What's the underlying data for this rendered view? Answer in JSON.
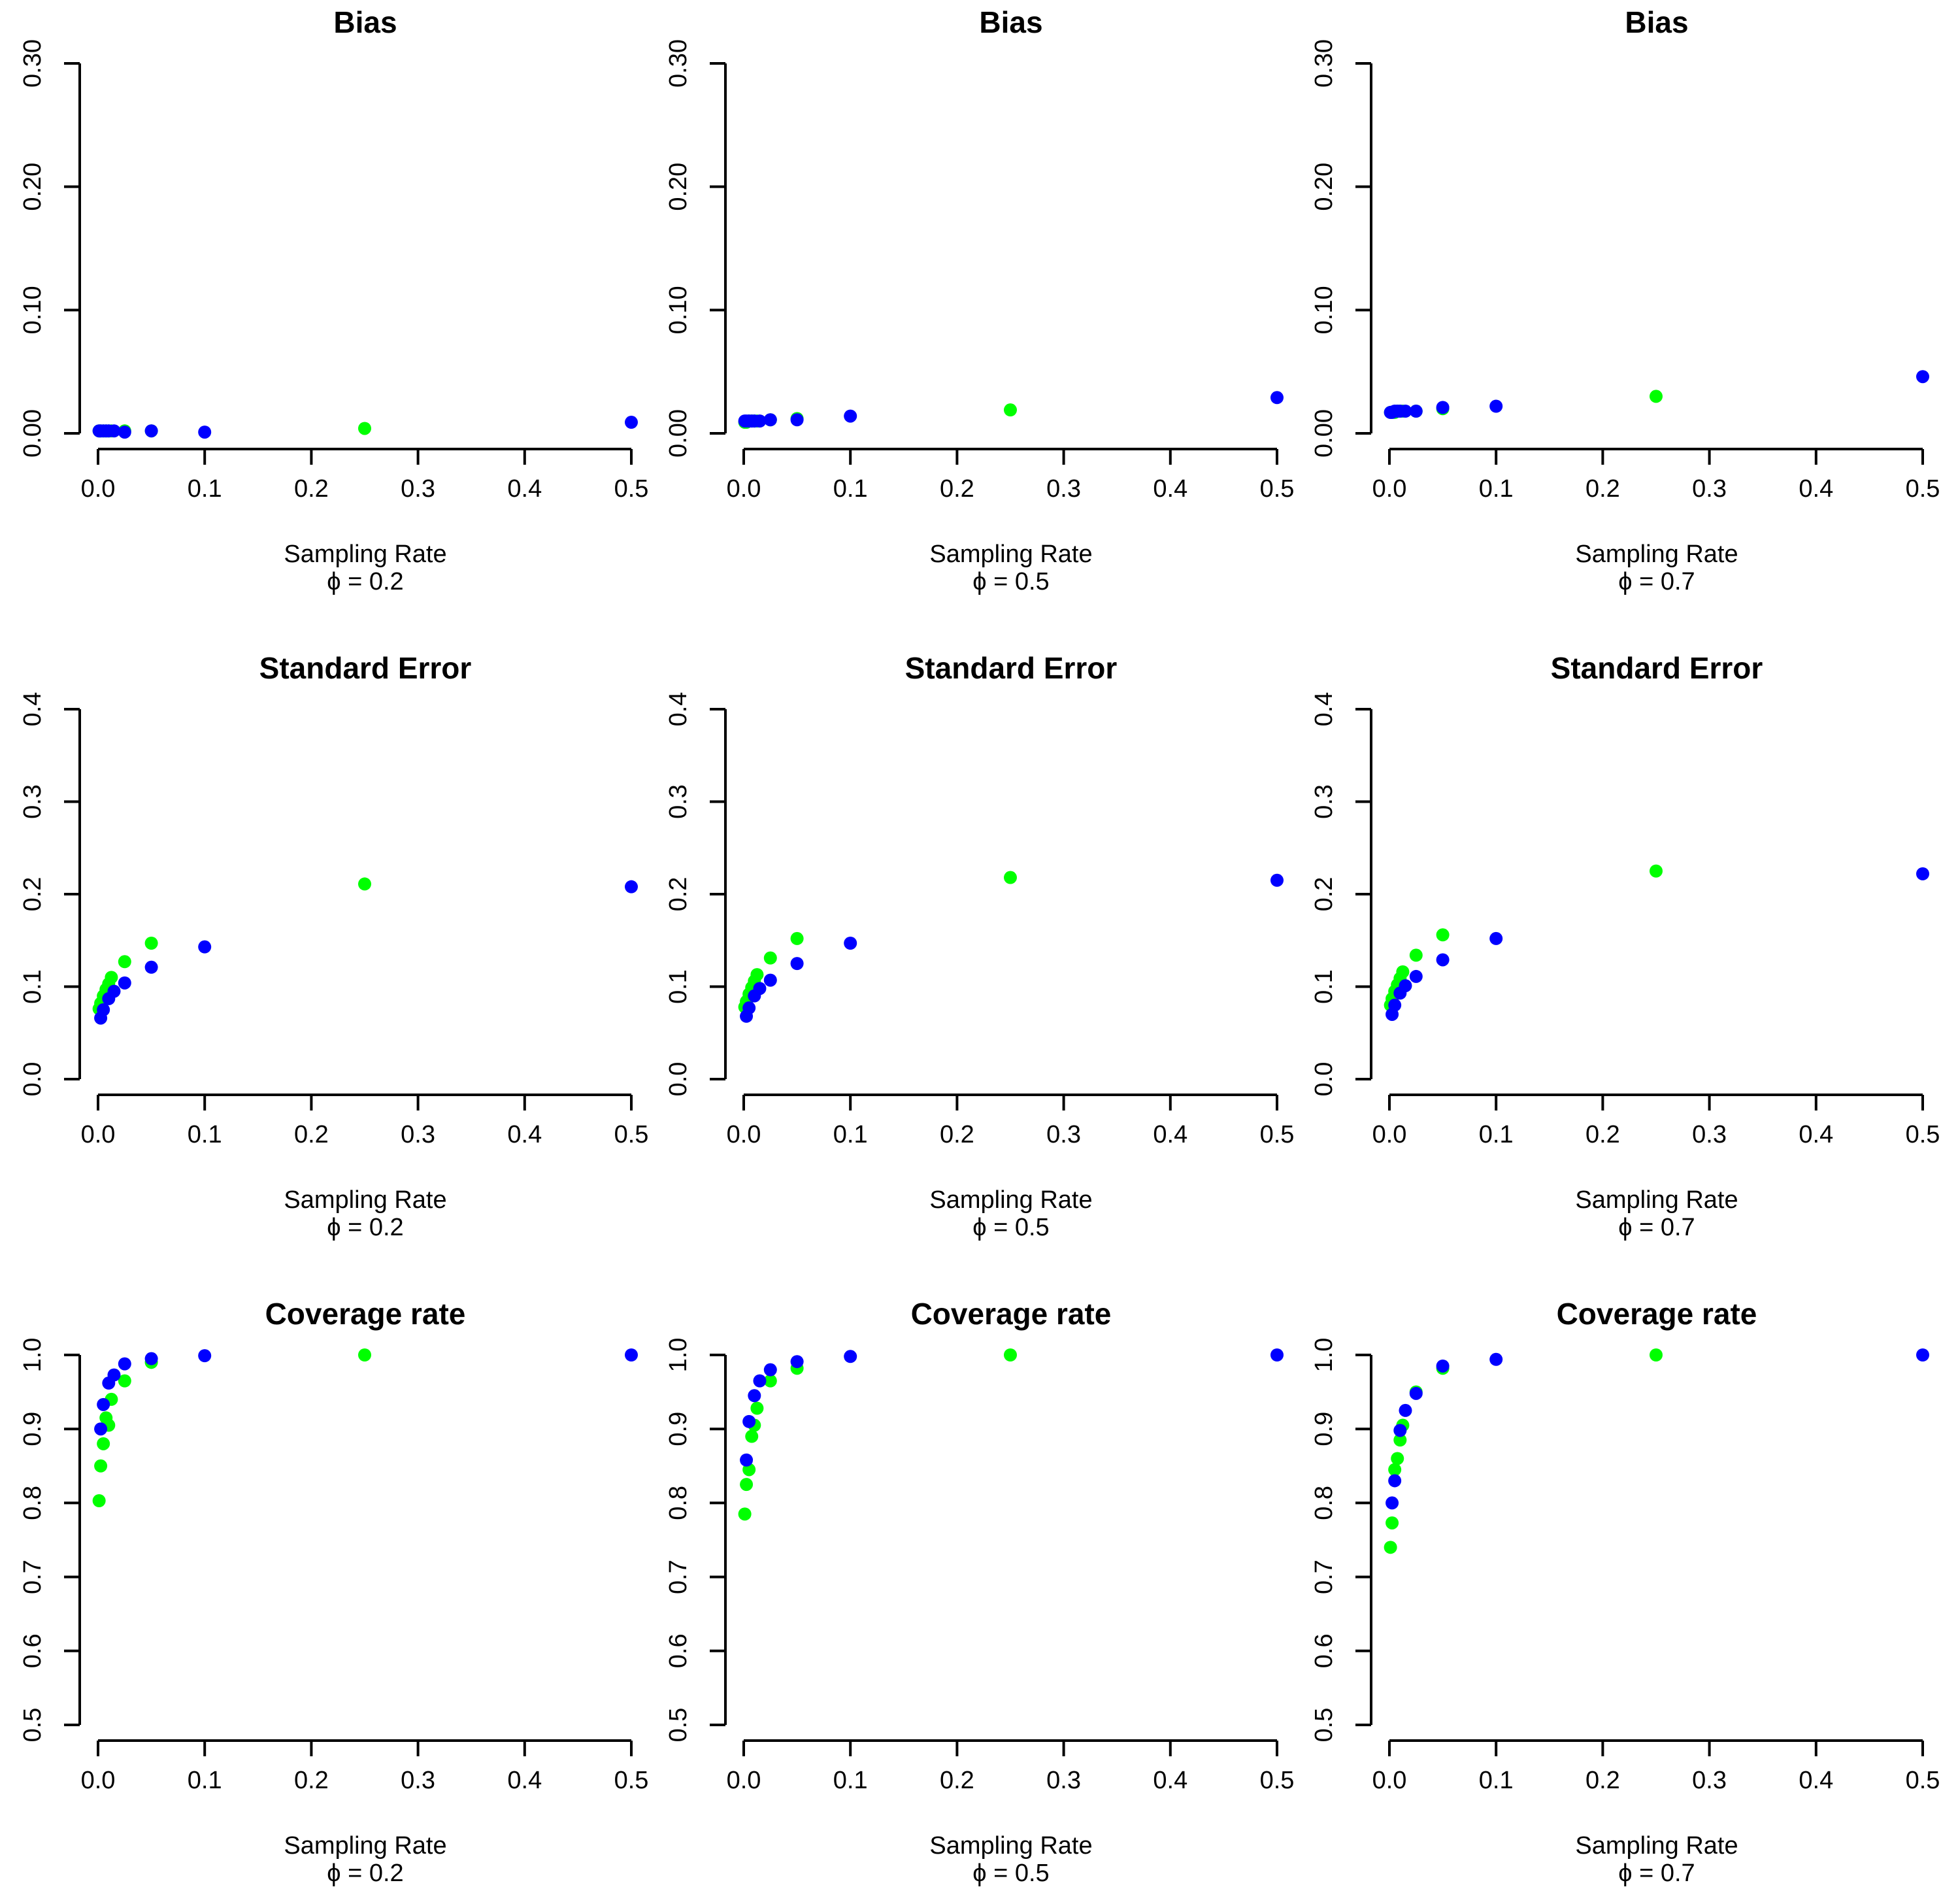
{
  "figure": {
    "rows": [
      "Bias",
      "Standard Error",
      "Coverage rate"
    ],
    "columns_phi": [
      "0.2",
      "0.5",
      "0.7"
    ]
  },
  "colors": {
    "series_a": "#00ff00",
    "series_b": "#0000ff",
    "axis": "#000000"
  },
  "chart_data": [
    {
      "type": "scatter",
      "title": "Bias",
      "xlabel": "Sampling Rate",
      "phi_label": "ϕ = 0.2",
      "xlim": [
        0,
        0.5
      ],
      "ylim": [
        0,
        0.3
      ],
      "xticks": [
        "0.0",
        "0.1",
        "0.2",
        "0.3",
        "0.4",
        "0.5"
      ],
      "xtick_values": [
        0,
        0.1,
        0.2,
        0.3,
        0.4,
        0.5
      ],
      "yticks": [
        "0.00",
        "0.10",
        "0.20",
        "0.30"
      ],
      "ytick_values": [
        0,
        0.1,
        0.2,
        0.3
      ],
      "series": [
        {
          "name": "green",
          "color": "#00ff00",
          "x": [
            0.001,
            0.0025,
            0.005,
            0.0075,
            0.01,
            0.0125,
            0.025,
            0.05,
            0.25
          ],
          "y": [
            0.002,
            0.002,
            0.002,
            0.002,
            0.002,
            0.002,
            0.002,
            0.002,
            0.004
          ]
        },
        {
          "name": "blue",
          "color": "#0000ff",
          "x": [
            0.001,
            0.0025,
            0.005,
            0.0075,
            0.01,
            0.015,
            0.025,
            0.05,
            0.1,
            0.5
          ],
          "y": [
            0.002,
            0.002,
            0.002,
            0.002,
            0.002,
            0.002,
            0.001,
            0.002,
            0.001,
            0.009
          ]
        }
      ]
    },
    {
      "type": "scatter",
      "title": "Bias",
      "xlabel": "Sampling Rate",
      "phi_label": "ϕ = 0.5",
      "xlim": [
        0,
        0.5
      ],
      "ylim": [
        0,
        0.3
      ],
      "xticks": [
        "0.0",
        "0.1",
        "0.2",
        "0.3",
        "0.4",
        "0.5"
      ],
      "xtick_values": [
        0,
        0.1,
        0.2,
        0.3,
        0.4,
        0.5
      ],
      "yticks": [
        "0.00",
        "0.10",
        "0.20",
        "0.30"
      ],
      "ytick_values": [
        0,
        0.1,
        0.2,
        0.3
      ],
      "series": [
        {
          "name": "green",
          "color": "#00ff00",
          "x": [
            0.001,
            0.0025,
            0.005,
            0.0075,
            0.01,
            0.0125,
            0.025,
            0.05,
            0.25
          ],
          "y": [
            0.009,
            0.009,
            0.01,
            0.01,
            0.01,
            0.01,
            0.011,
            0.012,
            0.019
          ]
        },
        {
          "name": "blue",
          "color": "#0000ff",
          "x": [
            0.001,
            0.0025,
            0.005,
            0.0075,
            0.01,
            0.015,
            0.025,
            0.05,
            0.1,
            0.5
          ],
          "y": [
            0.01,
            0.01,
            0.01,
            0.01,
            0.01,
            0.01,
            0.011,
            0.011,
            0.014,
            0.029
          ]
        }
      ]
    },
    {
      "type": "scatter",
      "title": "Bias",
      "xlabel": "Sampling Rate",
      "phi_label": "ϕ = 0.7",
      "xlim": [
        0,
        0.5
      ],
      "ylim": [
        0,
        0.3
      ],
      "xticks": [
        "0.0",
        "0.1",
        "0.2",
        "0.3",
        "0.4",
        "0.5"
      ],
      "xtick_values": [
        0,
        0.1,
        0.2,
        0.3,
        0.4,
        0.5
      ],
      "yticks": [
        "0.00",
        "0.10",
        "0.20",
        "0.30"
      ],
      "ytick_values": [
        0,
        0.1,
        0.2,
        0.3
      ],
      "series": [
        {
          "name": "green",
          "color": "#00ff00",
          "x": [
            0.001,
            0.0025,
            0.005,
            0.0075,
            0.01,
            0.0125,
            0.025,
            0.05,
            0.25
          ],
          "y": [
            0.017,
            0.017,
            0.017,
            0.018,
            0.018,
            0.018,
            0.018,
            0.02,
            0.03
          ]
        },
        {
          "name": "blue",
          "color": "#0000ff",
          "x": [
            0.001,
            0.0025,
            0.005,
            0.0075,
            0.01,
            0.015,
            0.025,
            0.05,
            0.1,
            0.5
          ],
          "y": [
            0.017,
            0.017,
            0.018,
            0.018,
            0.018,
            0.018,
            0.018,
            0.021,
            0.022,
            0.046
          ]
        }
      ]
    },
    {
      "type": "scatter",
      "title": "Standard Error",
      "xlabel": "Sampling Rate",
      "phi_label": "ϕ = 0.2",
      "xlim": [
        0,
        0.5
      ],
      "ylim": [
        0,
        0.4
      ],
      "xticks": [
        "0.0",
        "0.1",
        "0.2",
        "0.3",
        "0.4",
        "0.5"
      ],
      "xtick_values": [
        0,
        0.1,
        0.2,
        0.3,
        0.4,
        0.5
      ],
      "yticks": [
        "0.0",
        "0.1",
        "0.2",
        "0.3",
        "0.4"
      ],
      "ytick_values": [
        0,
        0.1,
        0.2,
        0.3,
        0.4
      ],
      "series": [
        {
          "name": "green",
          "color": "#00ff00",
          "x": [
            0.001,
            0.0025,
            0.005,
            0.0075,
            0.01,
            0.0125,
            0.025,
            0.05,
            0.25
          ],
          "y": [
            0.076,
            0.082,
            0.09,
            0.097,
            0.103,
            0.11,
            0.127,
            0.147,
            0.211
          ]
        },
        {
          "name": "blue",
          "color": "#0000ff",
          "x": [
            0.0025,
            0.005,
            0.01,
            0.015,
            0.025,
            0.05,
            0.1,
            0.5
          ],
          "y": [
            0.066,
            0.075,
            0.087,
            0.095,
            0.104,
            0.121,
            0.143,
            0.208
          ]
        }
      ]
    },
    {
      "type": "scatter",
      "title": "Standard Error",
      "xlabel": "Sampling Rate",
      "phi_label": "ϕ = 0.5",
      "xlim": [
        0,
        0.5
      ],
      "ylim": [
        0,
        0.4
      ],
      "xticks": [
        "0.0",
        "0.1",
        "0.2",
        "0.3",
        "0.4",
        "0.5"
      ],
      "xtick_values": [
        0,
        0.1,
        0.2,
        0.3,
        0.4,
        0.5
      ],
      "yticks": [
        "0.0",
        "0.1",
        "0.2",
        "0.3",
        "0.4"
      ],
      "ytick_values": [
        0,
        0.1,
        0.2,
        0.3,
        0.4
      ],
      "series": [
        {
          "name": "green",
          "color": "#00ff00",
          "x": [
            0.001,
            0.0025,
            0.005,
            0.0075,
            0.01,
            0.0125,
            0.025,
            0.05,
            0.25
          ],
          "y": [
            0.078,
            0.084,
            0.092,
            0.099,
            0.106,
            0.113,
            0.131,
            0.152,
            0.218
          ]
        },
        {
          "name": "blue",
          "color": "#0000ff",
          "x": [
            0.0025,
            0.005,
            0.01,
            0.015,
            0.025,
            0.05,
            0.1,
            0.5
          ],
          "y": [
            0.068,
            0.077,
            0.09,
            0.098,
            0.107,
            0.125,
            0.147,
            0.215
          ]
        }
      ]
    },
    {
      "type": "scatter",
      "title": "Standard Error",
      "xlabel": "Sampling Rate",
      "phi_label": "ϕ = 0.7",
      "xlim": [
        0,
        0.5
      ],
      "ylim": [
        0,
        0.4
      ],
      "xticks": [
        "0.0",
        "0.1",
        "0.2",
        "0.3",
        "0.4",
        "0.5"
      ],
      "xtick_values": [
        0,
        0.1,
        0.2,
        0.3,
        0.4,
        0.5
      ],
      "yticks": [
        "0.0",
        "0.1",
        "0.2",
        "0.3",
        "0.4"
      ],
      "ytick_values": [
        0,
        0.1,
        0.2,
        0.3,
        0.4
      ],
      "series": [
        {
          "name": "green",
          "color": "#00ff00",
          "x": [
            0.001,
            0.0025,
            0.005,
            0.0075,
            0.01,
            0.0125,
            0.025,
            0.05,
            0.25
          ],
          "y": [
            0.08,
            0.087,
            0.095,
            0.102,
            0.109,
            0.116,
            0.134,
            0.156,
            0.225
          ]
        },
        {
          "name": "blue",
          "color": "#0000ff",
          "x": [
            0.0025,
            0.005,
            0.01,
            0.015,
            0.025,
            0.05,
            0.1,
            0.5
          ],
          "y": [
            0.07,
            0.08,
            0.093,
            0.101,
            0.111,
            0.129,
            0.152,
            0.222
          ]
        }
      ]
    },
    {
      "type": "scatter",
      "title": "Coverage rate",
      "xlabel": "Sampling Rate",
      "phi_label": "ϕ = 0.2",
      "xlim": [
        0,
        0.5
      ],
      "ylim": [
        0.5,
        1.0
      ],
      "xticks": [
        "0.0",
        "0.1",
        "0.2",
        "0.3",
        "0.4",
        "0.5"
      ],
      "xtick_values": [
        0,
        0.1,
        0.2,
        0.3,
        0.4,
        0.5
      ],
      "yticks": [
        "0.5",
        "0.6",
        "0.7",
        "0.8",
        "0.9",
        "1.0"
      ],
      "ytick_values": [
        0.5,
        0.6,
        0.7,
        0.8,
        0.9,
        1.0
      ],
      "series": [
        {
          "name": "green",
          "color": "#00ff00",
          "x": [
            0.001,
            0.0025,
            0.005,
            0.0075,
            0.01,
            0.0125,
            0.025,
            0.05,
            0.25
          ],
          "y": [
            0.803,
            0.85,
            0.88,
            0.915,
            0.905,
            0.94,
            0.965,
            0.99,
            1.0
          ]
        },
        {
          "name": "blue",
          "color": "#0000ff",
          "x": [
            0.0025,
            0.005,
            0.01,
            0.015,
            0.025,
            0.05,
            0.1,
            0.5
          ],
          "y": [
            0.9,
            0.933,
            0.962,
            0.973,
            0.988,
            0.995,
            0.999,
            1.0
          ]
        }
      ]
    },
    {
      "type": "scatter",
      "title": "Coverage rate",
      "xlabel": "Sampling Rate",
      "phi_label": "ϕ = 0.5",
      "xlim": [
        0,
        0.5
      ],
      "ylim": [
        0.5,
        1.0
      ],
      "xticks": [
        "0.0",
        "0.1",
        "0.2",
        "0.3",
        "0.4",
        "0.5"
      ],
      "xtick_values": [
        0,
        0.1,
        0.2,
        0.3,
        0.4,
        0.5
      ],
      "yticks": [
        "0.5",
        "0.6",
        "0.7",
        "0.8",
        "0.9",
        "1.0"
      ],
      "ytick_values": [
        0.5,
        0.6,
        0.7,
        0.8,
        0.9,
        1.0
      ],
      "series": [
        {
          "name": "green",
          "color": "#00ff00",
          "x": [
            0.001,
            0.0025,
            0.005,
            0.0075,
            0.01,
            0.0125,
            0.025,
            0.05,
            0.25
          ],
          "y": [
            0.785,
            0.825,
            0.845,
            0.89,
            0.905,
            0.928,
            0.965,
            0.982,
            1.0
          ]
        },
        {
          "name": "blue",
          "color": "#0000ff",
          "x": [
            0.0025,
            0.005,
            0.01,
            0.015,
            0.025,
            0.05,
            0.1,
            0.5
          ],
          "y": [
            0.858,
            0.91,
            0.945,
            0.965,
            0.98,
            0.991,
            0.998,
            1.0
          ]
        }
      ]
    },
    {
      "type": "scatter",
      "title": "Coverage rate",
      "xlabel": "Sampling Rate",
      "phi_label": "ϕ = 0.7",
      "xlim": [
        0,
        0.5
      ],
      "ylim": [
        0.5,
        1.0
      ],
      "xticks": [
        "0.0",
        "0.1",
        "0.2",
        "0.3",
        "0.4",
        "0.5"
      ],
      "xtick_values": [
        0,
        0.1,
        0.2,
        0.3,
        0.4,
        0.5
      ],
      "yticks": [
        "0.5",
        "0.6",
        "0.7",
        "0.8",
        "0.9",
        "1.0"
      ],
      "ytick_values": [
        0.5,
        0.6,
        0.7,
        0.8,
        0.9,
        1.0
      ],
      "series": [
        {
          "name": "green",
          "color": "#00ff00",
          "x": [
            0.001,
            0.0025,
            0.005,
            0.0075,
            0.01,
            0.0125,
            0.025,
            0.05,
            0.25
          ],
          "y": [
            0.74,
            0.773,
            0.845,
            0.86,
            0.885,
            0.905,
            0.95,
            0.982,
            1.0
          ]
        },
        {
          "name": "blue",
          "color": "#0000ff",
          "x": [
            0.0025,
            0.005,
            0.01,
            0.015,
            0.025,
            0.05,
            0.1,
            0.5
          ],
          "y": [
            0.8,
            0.83,
            0.898,
            0.925,
            0.948,
            0.985,
            0.994,
            1.0
          ]
        }
      ]
    }
  ]
}
